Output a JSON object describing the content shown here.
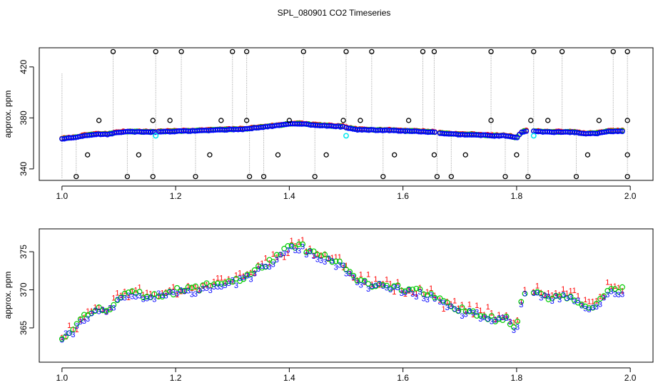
{
  "title": "SPL_080901  CO2 Timeseries",
  "colors": {
    "red": "#ff0000",
    "green": "#00cc00",
    "blue": "#0000ff",
    "black": "#000000",
    "cyan": "#00e5ee",
    "gray": "#9a9a9a"
  },
  "chart_data": [
    {
      "type": "scatter",
      "name": "top-panel",
      "title": "SPL_080901  CO2 Timeseries",
      "xlabel": "",
      "ylabel": "approx. ppm",
      "xlim": [
        0.96,
        2.04
      ],
      "ylim": [
        331,
        435
      ],
      "xticks": [
        1.0,
        1.2,
        1.4,
        1.6,
        1.8,
        2.0
      ],
      "xtick_labels": [
        "1.0",
        "1.2",
        "1.4",
        "1.6",
        "1.8",
        "2.0"
      ],
      "yticks": [
        340,
        380,
        420
      ],
      "ytick_labels": [
        "340",
        "380",
        "420"
      ],
      "outliers_high_x": [
        1.09,
        1.165,
        1.21,
        1.3,
        1.325,
        1.425,
        1.5,
        1.545,
        1.635,
        1.655,
        1.755,
        1.83,
        1.88,
        1.97,
        1.995
      ],
      "outliers_high_y": 432,
      "outliers_low_x": [
        1.025,
        1.115,
        1.16,
        1.235,
        1.33,
        1.355,
        1.445,
        1.565,
        1.66,
        1.685,
        1.78,
        1.82,
        1.905,
        1.995
      ],
      "outliers_low_y": 334,
      "outliers_mid_x": [
        1.065,
        1.16,
        1.19,
        1.28,
        1.325,
        1.4,
        1.495,
        1.525,
        1.61,
        1.755,
        1.825,
        1.855,
        1.945,
        1.995
      ],
      "outliers_mid_y": 378,
      "outliers_lowmid_x": [
        1.045,
        1.135,
        1.26,
        1.38,
        1.465,
        1.585,
        1.655,
        1.71,
        1.8,
        1.925,
        1.995
      ],
      "outliers_lowmid_y": 351,
      "cyan_x": [
        1.165,
        1.5,
        1.83
      ],
      "cyan_y": 366
    },
    {
      "type": "scatter",
      "name": "bottom-panel",
      "xlabel": "",
      "ylabel": "approx. ppm",
      "xlim": [
        0.96,
        2.04
      ],
      "ylim": [
        360.5,
        378
      ],
      "xticks": [
        1.0,
        1.2,
        1.4,
        1.6,
        1.8,
        2.0
      ],
      "xtick_labels": [
        "1.0",
        "1.2",
        "1.4",
        "1.6",
        "1.8",
        "2.0"
      ],
      "yticks": [
        365,
        370,
        375
      ],
      "ytick_labels": [
        "365",
        "370",
        "375"
      ],
      "markers": {
        "series1": "1",
        "series2": "o",
        "series3": "3"
      },
      "series": [
        {
          "name": "series-1",
          "marker": "1",
          "color": "red",
          "offset": 0.8
        },
        {
          "name": "series-2",
          "marker": "o",
          "color": "green",
          "offset": 0.3
        },
        {
          "name": "series-3",
          "marker": "3",
          "color": "blue",
          "offset": -0.2
        }
      ],
      "segments": [
        {
          "x": [
            1.0,
            1.02,
            1.04,
            1.06,
            1.08,
            1.1,
            1.12,
            1.14,
            1.165
          ],
          "y": [
            363.8,
            364.5,
            366.3,
            367.3,
            367.3,
            368.8,
            369.4,
            369.1,
            369.1
          ]
        },
        {
          "x": [
            1.17,
            1.2,
            1.24,
            1.28,
            1.32,
            1.34,
            1.36,
            1.38,
            1.4,
            1.42,
            1.44,
            1.46,
            1.48,
            1.495
          ],
          "y": [
            369.3,
            369.6,
            370.1,
            370.8,
            371.3,
            372.3,
            373.3,
            374.1,
            375.4,
            375.6,
            374.7,
            374.1,
            373.5,
            373.2
          ]
        },
        {
          "x": [
            1.5,
            1.52,
            1.54,
            1.56,
            1.58,
            1.6,
            1.62,
            1.64,
            1.66
          ],
          "y": [
            372.4,
            370.9,
            370.7,
            370.5,
            370.4,
            369.9,
            369.7,
            369.3,
            368.8
          ]
        },
        {
          "x": [
            1.665,
            1.68,
            1.7,
            1.72,
            1.74,
            1.76,
            1.78,
            1.79,
            1.8,
            1.81,
            1.82
          ],
          "y": [
            368.3,
            367.7,
            367.1,
            367.1,
            366.6,
            366.1,
            366.1,
            365.5,
            364.5,
            369.3,
            370.0
          ]
        },
        {
          "x": [
            1.83,
            1.84,
            1.86,
            1.88,
            1.9,
            1.92,
            1.94,
            1.96,
            1.99
          ],
          "y": [
            369.5,
            369.4,
            368.9,
            369.1,
            368.9,
            367.8,
            367.9,
            369.6,
            369.8
          ]
        }
      ]
    }
  ]
}
